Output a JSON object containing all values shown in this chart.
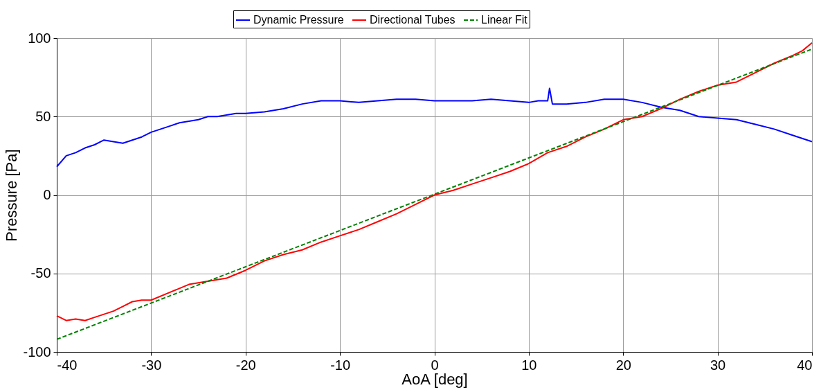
{
  "chart_data": {
    "type": "line",
    "xlabel": "AoA [deg]",
    "ylabel": "Pressure [Pa]",
    "xlim": [
      -40,
      40
    ],
    "ylim": [
      -100,
      100
    ],
    "xticks": [
      -40,
      -30,
      -20,
      -10,
      0,
      10,
      20,
      30,
      40
    ],
    "yticks": [
      -100,
      -50,
      0,
      50,
      100
    ],
    "grid": true,
    "legend": "top",
    "marker": "none",
    "series": [
      {
        "name": "Dynamic Pressure",
        "color": "#0000ff",
        "line_style": "solid",
        "x": [
          -40,
          -39,
          -38,
          -37,
          -36,
          -35,
          -34,
          -33,
          -32,
          -31,
          -30,
          -29,
          -28,
          -27,
          -26,
          -25,
          -24,
          -23,
          -22,
          -21,
          -20,
          -18,
          -16,
          -14,
          -12,
          -10,
          -8,
          -6,
          -4,
          -2,
          0,
          2,
          4,
          6,
          8,
          10,
          11,
          12,
          12.2,
          12.5,
          14,
          16,
          18,
          20,
          22,
          24,
          26,
          28,
          30,
          32,
          34,
          36,
          38,
          39,
          40
        ],
        "values": [
          18,
          25,
          27,
          30,
          32,
          35,
          34,
          33,
          35,
          37,
          40,
          42,
          44,
          46,
          47,
          48,
          50,
          50,
          51,
          52,
          52,
          53,
          55,
          58,
          60,
          60,
          59,
          60,
          61,
          61,
          60,
          60,
          60,
          61,
          60,
          59,
          60,
          60,
          68,
          58,
          58,
          59,
          61,
          61,
          59,
          56,
          54,
          50,
          49,
          48,
          45,
          42,
          38,
          36,
          34
        ]
      },
      {
        "name": "Directional Tubes",
        "color": "#ff0000",
        "line_style": "solid",
        "x": [
          -40,
          -39,
          -38,
          -37,
          -36,
          -35,
          -34,
          -33,
          -32,
          -31,
          -30,
          -28,
          -26,
          -24,
          -22,
          -20,
          -18,
          -16,
          -14,
          -12,
          -10,
          -8,
          -6,
          -4,
          -2,
          0,
          2,
          4,
          6,
          8,
          10,
          12,
          14,
          16,
          18,
          20,
          22,
          24,
          26,
          28,
          30,
          32,
          34,
          36,
          38,
          39,
          40
        ],
        "values": [
          -77,
          -80,
          -79,
          -80,
          -78,
          -76,
          -74,
          -71,
          -68,
          -67,
          -67,
          -62,
          -57,
          -55,
          -53,
          -48,
          -42,
          -38,
          -35,
          -30,
          -26,
          -22,
          -17,
          -12,
          -6,
          0,
          3,
          7,
          11,
          15,
          20,
          27,
          31,
          37,
          42,
          48,
          50,
          55,
          61,
          66,
          70,
          72,
          78,
          84,
          89,
          92,
          97
        ]
      },
      {
        "name": "Linear Fit",
        "color": "#008000",
        "line_style": "dashed",
        "x": [
          -40,
          40
        ],
        "values": [
          -92,
          93
        ]
      }
    ]
  }
}
